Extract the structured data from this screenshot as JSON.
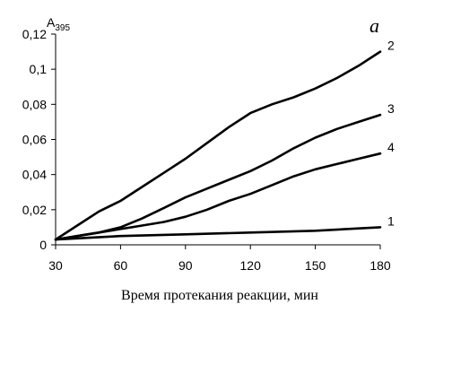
{
  "chart_data": {
    "type": "line",
    "panel_letter": "а",
    "ylabel_main": "A",
    "ylabel_sub": "395",
    "xlabel": "Время протекания реакции, мин",
    "xlim": [
      30,
      180
    ],
    "ylim": [
      0,
      0.12
    ],
    "x_ticks": [
      30,
      60,
      90,
      120,
      150,
      180
    ],
    "x_tick_labels": [
      "30",
      "60",
      "90",
      "120",
      "150",
      "180"
    ],
    "y_ticks": [
      0,
      0.02,
      0.04,
      0.06,
      0.08,
      0.1,
      0.12
    ],
    "y_tick_labels": [
      "0",
      "0,02",
      "0,04",
      "0,06",
      "0,08",
      "0,1",
      "0,12"
    ],
    "grid": false,
    "series": [
      {
        "name": "2",
        "x": [
          30,
          40,
          50,
          60,
          70,
          80,
          90,
          100,
          110,
          120,
          130,
          140,
          150,
          160,
          170,
          180
        ],
        "values": [
          0.003,
          0.011,
          0.019,
          0.025,
          0.033,
          0.041,
          0.049,
          0.058,
          0.067,
          0.075,
          0.08,
          0.084,
          0.089,
          0.095,
          0.102,
          0.11
        ]
      },
      {
        "name": "3",
        "x": [
          30,
          40,
          50,
          60,
          70,
          80,
          90,
          100,
          110,
          120,
          130,
          140,
          150,
          160,
          170,
          180
        ],
        "values": [
          0.003,
          0.005,
          0.007,
          0.01,
          0.015,
          0.021,
          0.027,
          0.032,
          0.037,
          0.042,
          0.048,
          0.055,
          0.061,
          0.066,
          0.07,
          0.074
        ]
      },
      {
        "name": "4",
        "x": [
          30,
          40,
          50,
          60,
          70,
          80,
          90,
          100,
          110,
          120,
          130,
          140,
          150,
          160,
          170,
          180
        ],
        "values": [
          0.003,
          0.005,
          0.007,
          0.009,
          0.011,
          0.013,
          0.016,
          0.02,
          0.025,
          0.029,
          0.034,
          0.039,
          0.043,
          0.046,
          0.049,
          0.052
        ]
      },
      {
        "name": "1",
        "x": [
          30,
          60,
          90,
          120,
          150,
          180
        ],
        "values": [
          0.003,
          0.005,
          0.006,
          0.007,
          0.008,
          0.01
        ]
      }
    ]
  }
}
